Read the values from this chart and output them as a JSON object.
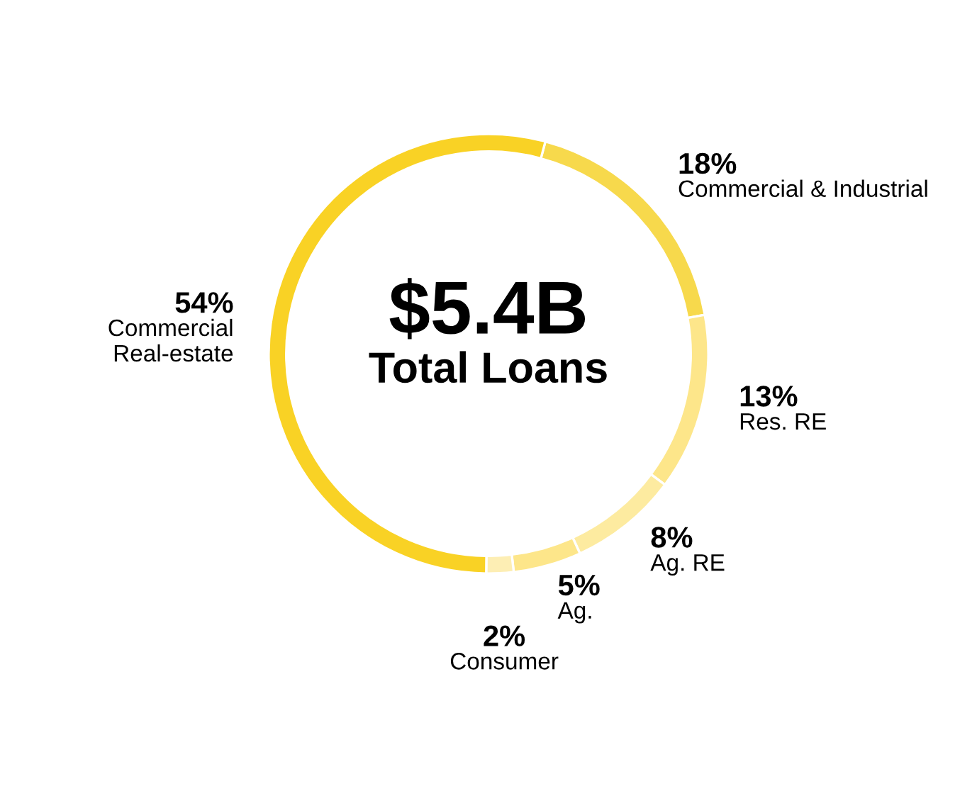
{
  "chart_data": {
    "type": "donut",
    "categories": [
      "Commercial & Industrial",
      "Res. RE",
      "Ag. RE",
      "Ag.",
      "Consumer",
      "Commercial Real-estate"
    ],
    "values": [
      18,
      13,
      8,
      5,
      2,
      54
    ],
    "value_labels": [
      "18%",
      "13%",
      "8%",
      "5%",
      "2%",
      "54%"
    ],
    "colors": [
      "#f7d94c",
      "#fde68a",
      "#fdeba0",
      "#fde68a",
      "#fdeeb4",
      "#f9d225"
    ],
    "annotations": [
      "$5.4B",
      "Total Loans"
    ]
  }
}
